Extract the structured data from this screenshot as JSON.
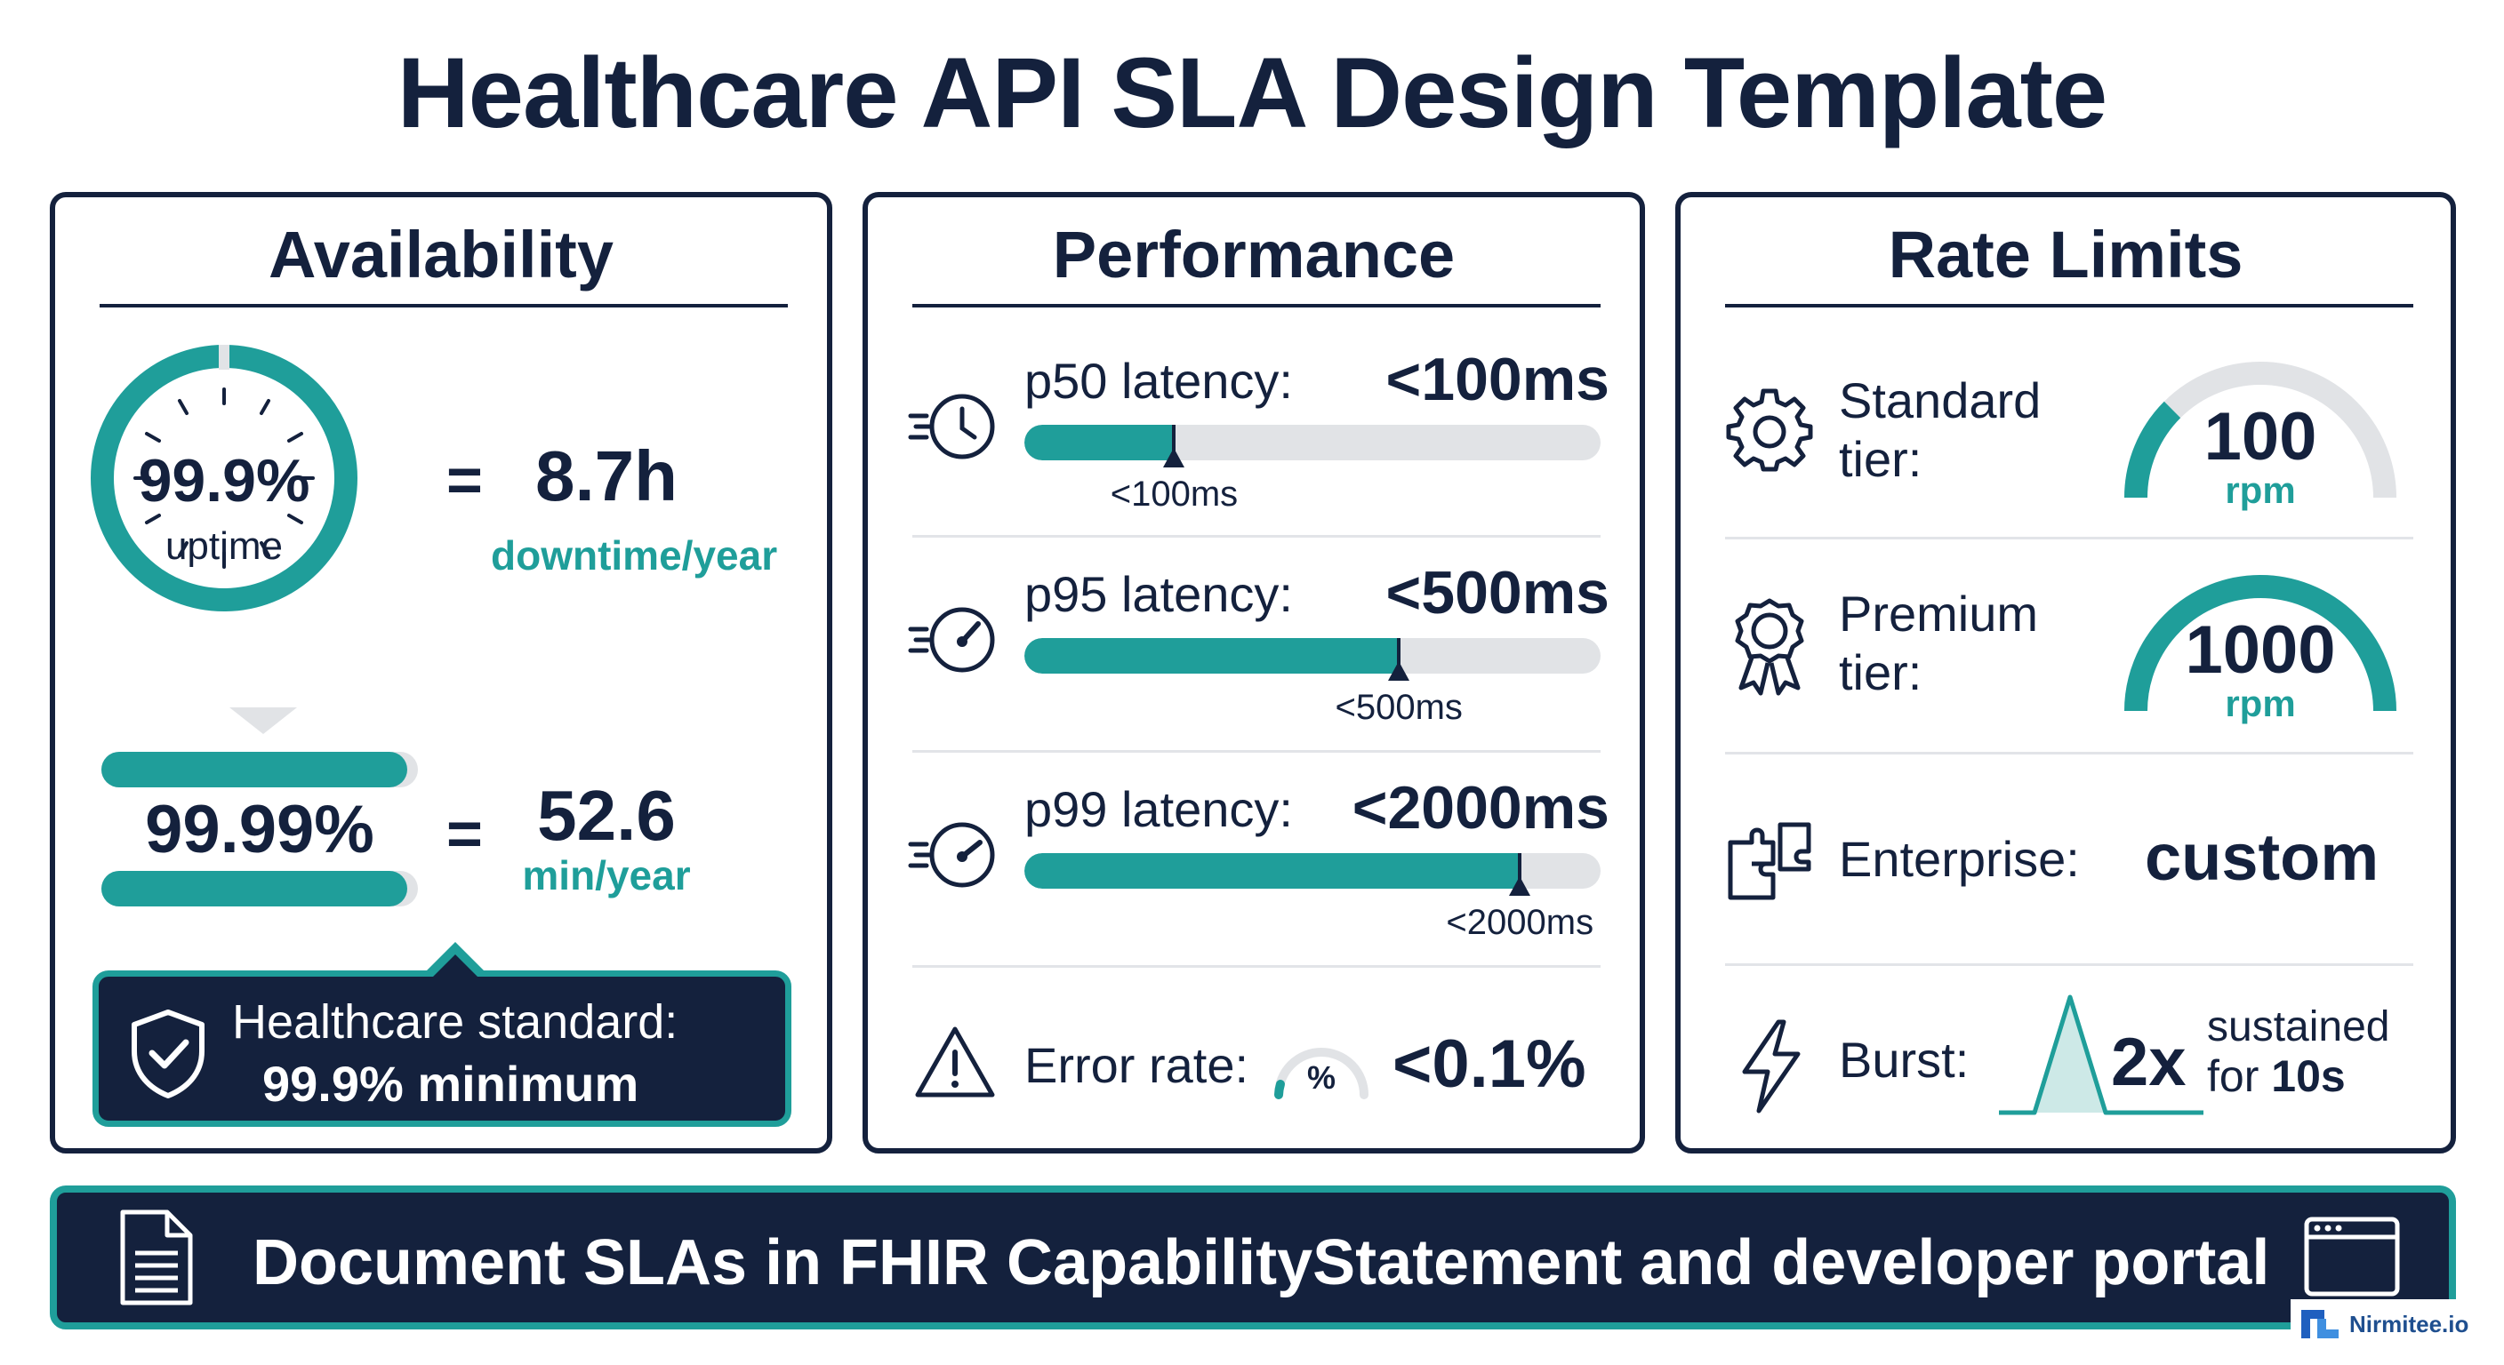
{
  "title": "Healthcare API SLA Design Template",
  "colors": {
    "navy": "#14213d",
    "teal": "#1f9e9a",
    "track": "#e1e3e6"
  },
  "availability": {
    "heading": "Availability",
    "gauge_value": "99.9%",
    "gauge_label": "uptime",
    "equals": "=",
    "downtime_value": "8.7h",
    "downtime_unit": "downtime/year",
    "second_value": "99.99%",
    "second_downtime_value": "52.6",
    "second_downtime_unit": "min/year",
    "callout_line1": "Healthcare standard:",
    "callout_line2": "99.9% minimum",
    "callout_icon": "shield-check-icon"
  },
  "performance": {
    "heading": "Performance",
    "rows": [
      {
        "label": "p50 latency:",
        "value": "<100ms",
        "marker_label": "<100ms",
        "fill": 0.26,
        "icon": "clock-speed-icon"
      },
      {
        "label": "p95 latency:",
        "value": "<500ms",
        "marker_label": "<500ms",
        "fill": 0.65,
        "icon": "speedometer-icon"
      },
      {
        "label": "p99 latency:",
        "value": "<2000ms",
        "marker_label": "<2000ms",
        "fill": 0.86,
        "icon": "speedometer-icon"
      }
    ],
    "error": {
      "label": "Error rate:",
      "gauge_symbol": "%",
      "value": "<0.1%",
      "icon": "warning-icon"
    }
  },
  "rate_limits": {
    "heading": "Rate Limits",
    "standard": {
      "label_line1": "Standard",
      "label_line2": "tier:",
      "value": "100",
      "unit": "rpm",
      "gauge_fill": 0.25,
      "icon": "gear-icon"
    },
    "premium": {
      "label_line1": "Premium",
      "label_line2": "tier:",
      "value": "1000",
      "unit": "rpm",
      "gauge_fill": 1.0,
      "icon": "award-badge-icon"
    },
    "enterprise": {
      "label": "Enterprise:",
      "value": "custom",
      "icon": "puzzle-icon"
    },
    "burst": {
      "label": "Burst:",
      "value": "2x",
      "note_line1": "sustained",
      "note_line2_prefix": "for",
      "note_line2_value": "10s",
      "icon": "lightning-icon"
    }
  },
  "banner": {
    "text": "Document SLAs in FHIR CapabilityStatement and developer portal",
    "left_icon": "document-icon",
    "right_icon": "browser-window-icon"
  },
  "logo": {
    "text": "Nirmitee.io",
    "icon": "nirmitee-logo-icon"
  }
}
